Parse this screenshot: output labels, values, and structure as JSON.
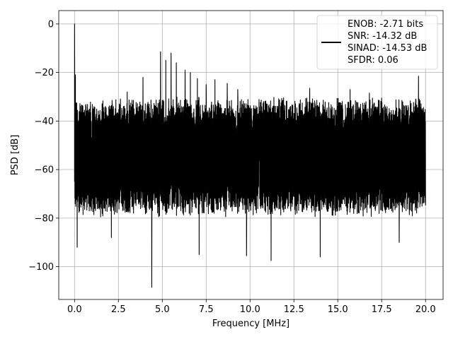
{
  "chart_data": {
    "type": "line",
    "title": "",
    "xlabel": "Frequency [MHz]",
    "ylabel": "PSD [dB]",
    "xlim": [
      -0.9,
      21.0
    ],
    "ylim": [
      -113.5,
      5.5
    ],
    "xticks": [
      0.0,
      2.5,
      5.0,
      7.5,
      10.0,
      12.5,
      15.0,
      17.5,
      20.0
    ],
    "xtick_labels": [
      "0.0",
      "2.5",
      "5.0",
      "7.5",
      "10.0",
      "12.5",
      "15.0",
      "17.5",
      "20.0"
    ],
    "yticks": [
      0,
      -20,
      -40,
      -60,
      -80,
      -100
    ],
    "ytick_labels": [
      "0",
      "−20",
      "−40",
      "−60",
      "−80",
      "−100"
    ],
    "grid": true,
    "legend_position": "top-right",
    "series": [
      {
        "name": "ENOB: -2.71 bits\nSNR: -14.32 dB\nSINAD: -14.53 dB\nSFDR: 0.06",
        "legend_lines": [
          "ENOB: -2.71 bits",
          "SNR: -14.32 dB",
          "SINAD: -14.53 dB",
          "SFDR: 0.06"
        ],
        "color": "#000000",
        "x_range": [
          0.0,
          20.0
        ],
        "noise_floor": {
          "center": -55,
          "upper": -32,
          "lower": -77
        },
        "peaks": [
          {
            "x": 0.0,
            "y": 0.0
          },
          {
            "x": 0.05,
            "y": -21.0
          },
          {
            "x": 3.0,
            "y": -28.0
          },
          {
            "x": 3.9,
            "y": -22.0
          },
          {
            "x": 4.4,
            "y": -18.0
          },
          {
            "x": 4.9,
            "y": -11.5
          },
          {
            "x": 5.2,
            "y": -15.0
          },
          {
            "x": 5.5,
            "y": -12.0
          },
          {
            "x": 5.8,
            "y": -16.0
          },
          {
            "x": 6.3,
            "y": -19.0
          },
          {
            "x": 6.6,
            "y": -20.0
          },
          {
            "x": 7.0,
            "y": -22.5
          },
          {
            "x": 7.5,
            "y": -25.0
          },
          {
            "x": 8.0,
            "y": -23.0
          },
          {
            "x": 8.7,
            "y": -24.5
          },
          {
            "x": 9.3,
            "y": -27.0
          },
          {
            "x": 13.4,
            "y": -26.5
          },
          {
            "x": 15.7,
            "y": -27.0
          },
          {
            "x": 16.8,
            "y": -28.5
          },
          {
            "x": 19.6,
            "y": -21.5
          }
        ],
        "dips": [
          {
            "x": 0.15,
            "y": -92.0
          },
          {
            "x": 2.1,
            "y": -88.0
          },
          {
            "x": 4.4,
            "y": -108.5
          },
          {
            "x": 7.1,
            "y": -95.0
          },
          {
            "x": 9.8,
            "y": -95.5
          },
          {
            "x": 11.2,
            "y": -97.5
          },
          {
            "x": 14.0,
            "y": -96.0
          },
          {
            "x": 18.5,
            "y": -90.0
          }
        ]
      }
    ]
  }
}
